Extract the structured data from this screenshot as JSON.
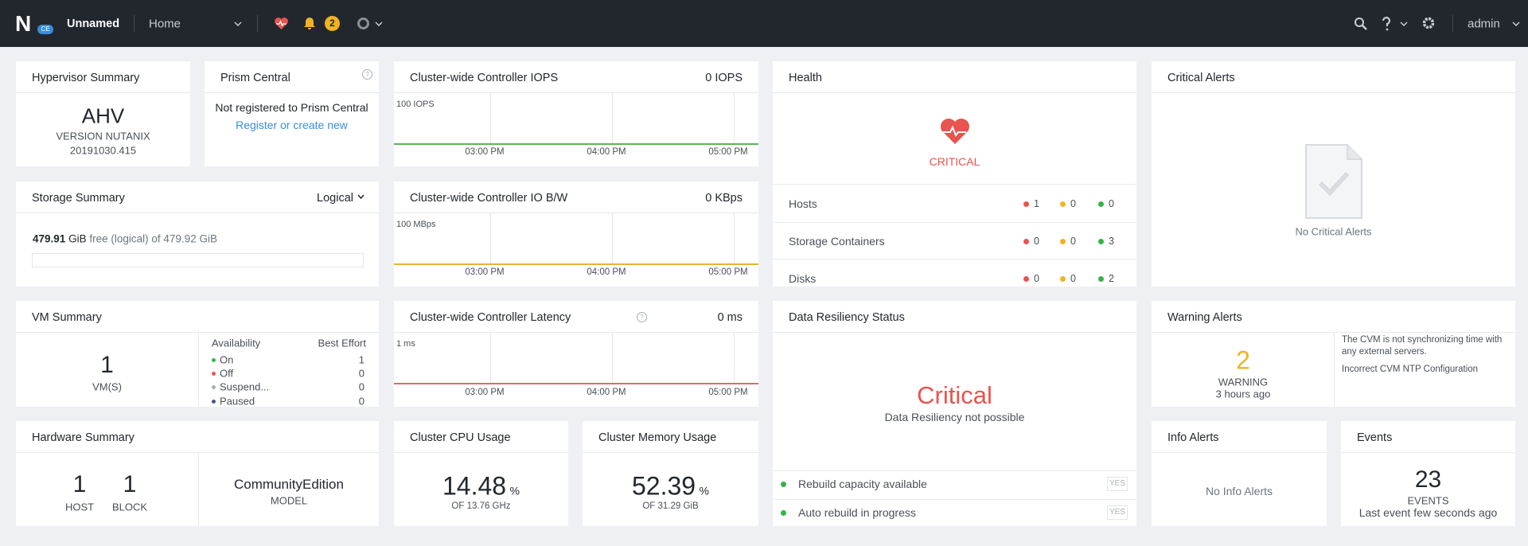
{
  "nav": {
    "logo": "N",
    "edition": "CE",
    "cluster": "Unnamed",
    "menu": "Home",
    "alert_count": "2",
    "user": "admin"
  },
  "hypervisor": {
    "title": "Hypervisor Summary",
    "name": "AHV",
    "version_label": "VERSION NUTANIX",
    "version": "20191030.415"
  },
  "prism_central": {
    "title": "Prism Central",
    "status": "Not registered to Prism Central",
    "link": "Register or create new"
  },
  "iops": {
    "title": "Cluster-wide Controller IOPS",
    "current": "0 IOPS",
    "scale": "100 IOPS",
    "times": [
      "03:00 PM",
      "04:00 PM",
      "05:00 PM"
    ]
  },
  "io_bw": {
    "title": "Cluster-wide Controller IO B/W",
    "current": "0 KBps",
    "scale": "100 MBps",
    "times": [
      "03:00 PM",
      "04:00 PM",
      "05:00 PM"
    ]
  },
  "latency": {
    "title": "Cluster-wide Controller Latency",
    "current": "0 ms",
    "scale": "1 ms",
    "times": [
      "03:00 PM",
      "04:00 PM",
      "05:00 PM"
    ]
  },
  "health": {
    "title": "Health",
    "status": "CRITICAL",
    "rows": [
      {
        "label": "Hosts",
        "critical": 1,
        "warning": 0,
        "good": 0
      },
      {
        "label": "Storage Containers",
        "critical": 0,
        "warning": 0,
        "good": 3
      },
      {
        "label": "Disks",
        "critical": 0,
        "warning": 0,
        "good": 2
      }
    ]
  },
  "critical_alerts": {
    "title": "Critical Alerts",
    "empty": "No Critical Alerts"
  },
  "storage": {
    "title": "Storage Summary",
    "mode": "Logical",
    "free": "479.91",
    "free_unit": "GiB",
    "free_text": "free (logical) of",
    "total": "479.92 GiB"
  },
  "vm": {
    "title": "VM Summary",
    "count": 1,
    "count_label": "VM(S)",
    "availability_header": "Availability",
    "availability": "Best Effort",
    "states": [
      {
        "label": "On",
        "count": 1
      },
      {
        "label": "Off",
        "count": 0
      },
      {
        "label": "Suspend...",
        "count": 0
      },
      {
        "label": "Paused",
        "count": 0
      }
    ]
  },
  "data_resiliency": {
    "title": "Data Resiliency Status",
    "status": "Critical",
    "detail": "Data Resiliency not possible",
    "checks": [
      {
        "label": "Rebuild capacity available",
        "value": "YES"
      },
      {
        "label": "Auto rebuild in progress",
        "value": "YES"
      }
    ]
  },
  "warning_alerts": {
    "title": "Warning Alerts",
    "count": 2,
    "count_label": "WARNING",
    "time": "3 hours ago",
    "messages": [
      "The CVM is not synchronizing time with any external servers.",
      "Incorrect CVM NTP Configuration"
    ]
  },
  "hardware": {
    "title": "Hardware Summary",
    "hosts": 1,
    "hosts_label": "HOST",
    "blocks": 1,
    "blocks_label": "BLOCK",
    "model": "CommunityEdition",
    "model_label": "MODEL"
  },
  "cpu": {
    "title": "Cluster CPU Usage",
    "value": "14.48",
    "unit": "%",
    "detail": "OF 13.76 GHz"
  },
  "memory": {
    "title": "Cluster Memory Usage",
    "value": "52.39",
    "unit": "%",
    "detail": "OF 31.29 GiB"
  },
  "info_alerts": {
    "title": "Info Alerts",
    "empty": "No Info Alerts"
  },
  "events": {
    "title": "Events",
    "count": 23,
    "count_label": "EVENTS",
    "detail": "Last event few seconds ago"
  }
}
